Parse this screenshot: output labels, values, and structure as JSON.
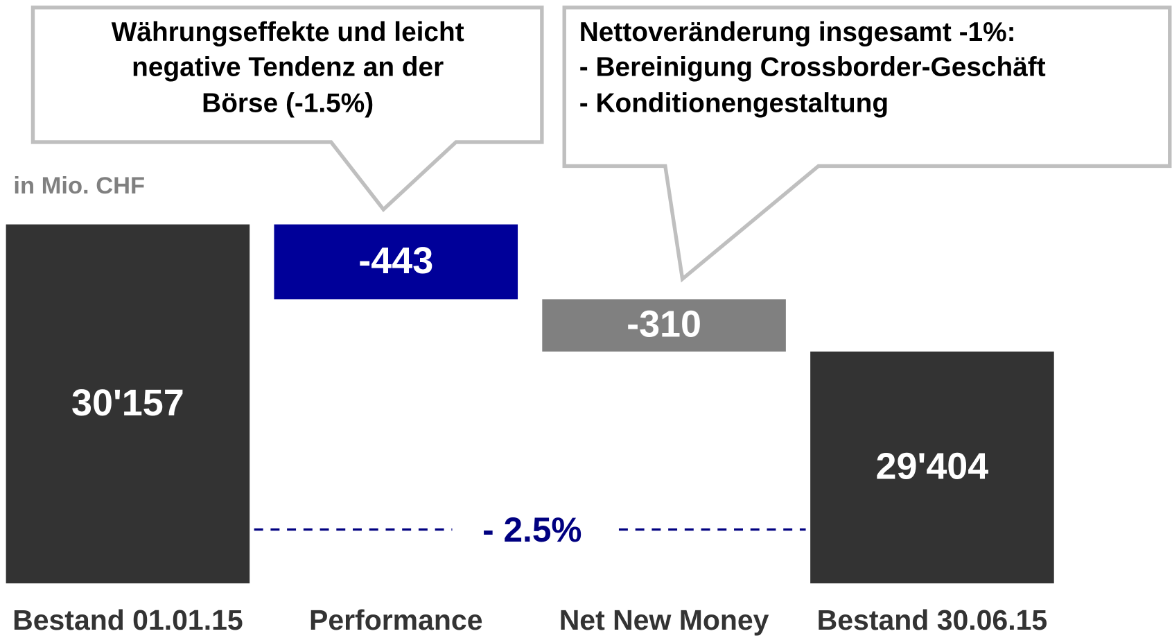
{
  "chart_data": {
    "type": "waterfall",
    "categories": [
      "Bestand 01.01.15",
      "Performance",
      "Net New Money",
      "Bestand 30.06.15"
    ],
    "values": [
      30157,
      -443,
      -310,
      29404
    ],
    "value_labels": [
      "30'157",
      "-443",
      "-310",
      "29'404"
    ],
    "colors": [
      "#333333",
      "#000099",
      "#808080",
      "#333333"
    ],
    "ylim": [
      28031,
      30157
    ],
    "unit_label": "in Mio. CHF",
    "change_label": "- 2.5%",
    "change_color": "#000080",
    "callouts": [
      [
        "Währungseffekte und leicht",
        "negative Tendenz an der",
        "Börse (-1.5%)"
      ],
      [
        "Nettoveränderung insgesamt -1%:",
        "- Bereinigung Crossborder-Geschäft",
        "- Konditionengestaltung"
      ]
    ]
  }
}
